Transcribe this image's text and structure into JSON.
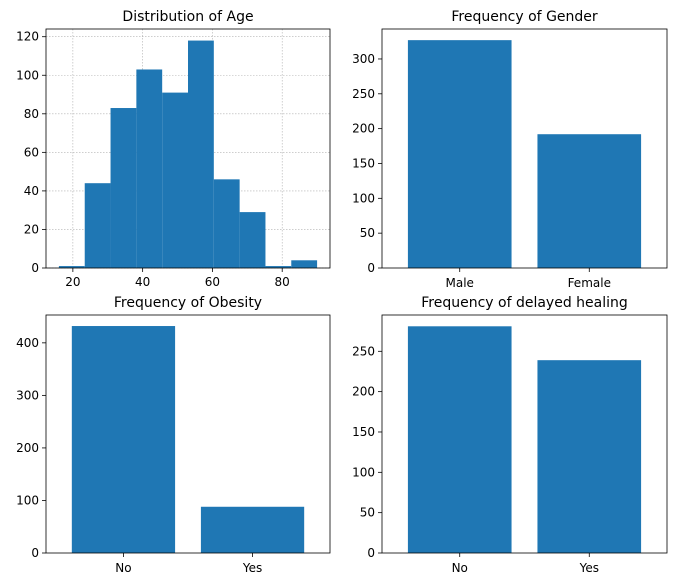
{
  "colors": {
    "bar": "#1f77b4",
    "grid": "#b0b0b0",
    "axis": "#000000"
  },
  "chart_data": [
    {
      "type": "bar",
      "title": "Distribution of Age",
      "bins": [
        {
          "x0": 16.0,
          "x1": 23.4,
          "value": 1
        },
        {
          "x0": 23.4,
          "x1": 30.8,
          "value": 44
        },
        {
          "x0": 30.8,
          "x1": 38.2,
          "value": 83
        },
        {
          "x0": 38.2,
          "x1": 45.6,
          "value": 103
        },
        {
          "x0": 45.6,
          "x1": 53.0,
          "value": 91
        },
        {
          "x0": 53.0,
          "x1": 60.4,
          "value": 118
        },
        {
          "x0": 60.4,
          "x1": 67.8,
          "value": 46
        },
        {
          "x0": 67.8,
          "x1": 75.2,
          "value": 29
        },
        {
          "x0": 75.2,
          "x1": 82.6,
          "value": 1
        },
        {
          "x0": 82.6,
          "x1": 90.0,
          "value": 4
        }
      ],
      "xlim": [
        12.3,
        93.7
      ],
      "ylim": [
        0,
        124
      ],
      "xticks": [
        20,
        40,
        60,
        80
      ],
      "yticks": [
        0,
        20,
        40,
        60,
        80,
        100,
        120
      ],
      "grid": true
    },
    {
      "type": "bar",
      "title": "Frequency of Gender",
      "categories": [
        "Male",
        "Female"
      ],
      "values": [
        327,
        192
      ],
      "ylim": [
        0,
        343
      ],
      "yticks": [
        0,
        50,
        100,
        150,
        200,
        250,
        300
      ],
      "grid": false
    },
    {
      "type": "bar",
      "title": "Frequency of Obesity",
      "categories": [
        "No",
        "Yes"
      ],
      "values": [
        432,
        88
      ],
      "ylim": [
        0,
        453
      ],
      "yticks": [
        0,
        100,
        200,
        300,
        400
      ],
      "grid": false
    },
    {
      "type": "bar",
      "title": "Frequency of delayed healing",
      "categories": [
        "No",
        "Yes"
      ],
      "values": [
        281,
        239
      ],
      "ylim": [
        0,
        295
      ],
      "yticks": [
        0,
        50,
        100,
        150,
        200,
        250
      ],
      "grid": false
    }
  ]
}
